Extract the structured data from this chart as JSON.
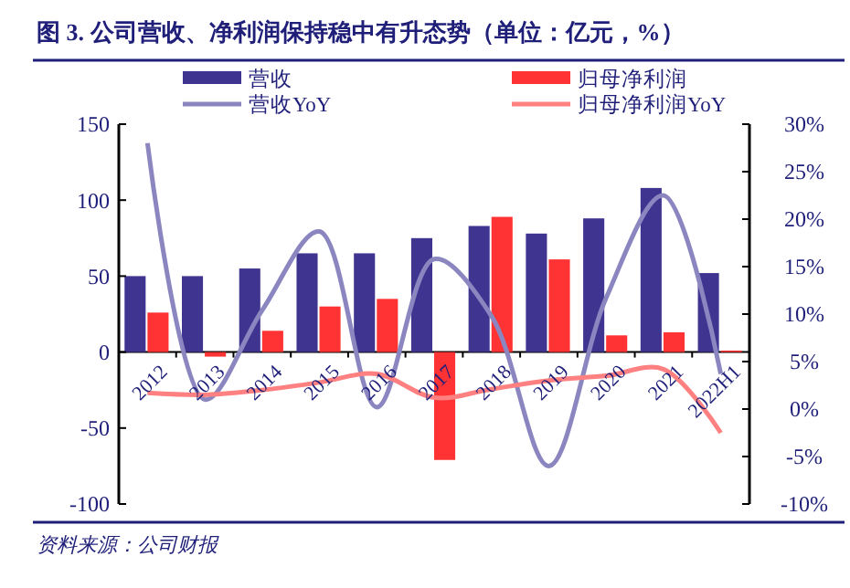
{
  "chart_data": {
    "type": "bar",
    "title": "图 3. 公司营收、净利润保持稳中有升态势（单位：亿元，%）",
    "categories": [
      "2012",
      "2013",
      "2014",
      "2015",
      "2016",
      "2017",
      "2018",
      "2019",
      "2020",
      "2021",
      "2022H1"
    ],
    "series": [
      {
        "name": "营收",
        "color": "#3f3590",
        "values": [
          50,
          50,
          55,
          65,
          65,
          75,
          83,
          78,
          88,
          108,
          52
        ]
      },
      {
        "name": "归母净利润",
        "color": "#ff3333",
        "values": [
          26,
          -3,
          14,
          30,
          35,
          -71,
          89,
          61,
          11,
          13,
          1
        ]
      },
      {
        "name": "营收YoY",
        "type": "line",
        "axis": "y2",
        "color": "#8b86c0",
        "values": [
          28,
          1,
          10.4,
          18.7,
          0.2,
          15.8,
          9.8,
          -6,
          11.7,
          22.5,
          3.7
        ]
      },
      {
        "name": "归母净利润YoY",
        "type": "line",
        "axis": "y2",
        "color": "#ff8080",
        "values": [
          1.7,
          1.5,
          2,
          2.8,
          3.7,
          1.2,
          2.1,
          3,
          3.5,
          4.2,
          -2.5
        ]
      }
    ],
    "ylim": [
      -100,
      150
    ],
    "yticks": [
      -100,
      -50,
      0,
      50,
      100,
      150
    ],
    "y2lim": [
      -10,
      30
    ],
    "y2ticks": [
      {
        "value": -10,
        "label": "-10%"
      },
      {
        "value": -5,
        "label": "-5%"
      },
      {
        "value": 0,
        "label": "0%"
      },
      {
        "value": 5,
        "label": "5%"
      },
      {
        "value": 10,
        "label": "10%"
      },
      {
        "value": 15,
        "label": "15%"
      },
      {
        "value": 20,
        "label": "20%"
      },
      {
        "value": 25,
        "label": "25%"
      },
      {
        "value": 30,
        "label": "30%"
      }
    ],
    "legend": "top",
    "grid": false,
    "marker": "none",
    "line_style": "solid",
    "annotations": [
      "资料来源：公司财报"
    ]
  }
}
